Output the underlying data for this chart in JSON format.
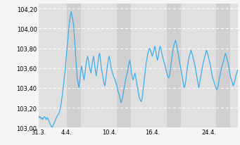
{
  "title": "",
  "ylim": [
    103.0,
    104.25
  ],
  "yticks": [
    103.0,
    103.2,
    103.4,
    103.6,
    103.8,
    104.0,
    104.2
  ],
  "ytick_labels": [
    "103,00",
    "103,20",
    "103,40",
    "103,60",
    "103,80",
    "104,00",
    "104,20"
  ],
  "xtick_labels": [
    "31.3.",
    "4.4.",
    "10.4.",
    "16.4.",
    "24.4."
  ],
  "xtick_positions_days": [
    0,
    4,
    10,
    16,
    24
  ],
  "total_days": 28,
  "line_color": "#3daee9",
  "background_color": "#f5f5f5",
  "plot_bg_color": "#ebebeb",
  "stripe_light": "#e0e0e0",
  "stripe_dark": "#d0d0d0",
  "grid_color": "#ffffff",
  "line_width": 0.9,
  "points_per_day": 8,
  "start_weekday": 1,
  "y_values": [
    103.12,
    103.1,
    103.11,
    103.09,
    103.1,
    103.08,
    103.1,
    103.11,
    103.1,
    103.08,
    103.1,
    103.09,
    103.07,
    103.05,
    103.03,
    103.01,
    103.0,
    103.02,
    103.04,
    103.06,
    103.08,
    103.1,
    103.12,
    103.13,
    103.15,
    103.18,
    103.22,
    103.28,
    103.35,
    103.42,
    103.5,
    103.58,
    103.68,
    103.78,
    103.88,
    103.98,
    104.06,
    104.12,
    104.17,
    104.13,
    104.08,
    104.02,
    103.88,
    103.75,
    103.62,
    103.5,
    103.45,
    103.4,
    103.48,
    103.55,
    103.62,
    103.58,
    103.52,
    103.48,
    103.55,
    103.62,
    103.68,
    103.72,
    103.68,
    103.62,
    103.58,
    103.55,
    103.62,
    103.68,
    103.72,
    103.65,
    103.58,
    103.52,
    103.58,
    103.65,
    103.72,
    103.75,
    103.68,
    103.6,
    103.55,
    103.5,
    103.45,
    103.42,
    103.48,
    103.55,
    103.62,
    103.68,
    103.72,
    103.68,
    103.62,
    103.58,
    103.55,
    103.52,
    103.5,
    103.48,
    103.45,
    103.42,
    103.38,
    103.35,
    103.32,
    103.28,
    103.25,
    103.28,
    103.32,
    103.38,
    103.42,
    103.48,
    103.52,
    103.55,
    103.6,
    103.65,
    103.68,
    103.62,
    103.55,
    103.5,
    103.48,
    103.52,
    103.55,
    103.5,
    103.45,
    103.4,
    103.35,
    103.3,
    103.28,
    103.26,
    103.28,
    103.35,
    103.42,
    103.5,
    103.58,
    103.65,
    103.7,
    103.75,
    103.78,
    103.8,
    103.78,
    103.75,
    103.72,
    103.75,
    103.78,
    103.82,
    103.78,
    103.72,
    103.68,
    103.72,
    103.78,
    103.82,
    103.8,
    103.75,
    103.72,
    103.68,
    103.65,
    103.62,
    103.58,
    103.55,
    103.52,
    103.5,
    103.52,
    103.58,
    103.65,
    103.72,
    103.78,
    103.82,
    103.85,
    103.88,
    103.85,
    103.8,
    103.75,
    103.7,
    103.65,
    103.6,
    103.55,
    103.5,
    103.45,
    103.4,
    103.42,
    103.48,
    103.55,
    103.62,
    103.68,
    103.72,
    103.75,
    103.78,
    103.75,
    103.72,
    103.68,
    103.65,
    103.6,
    103.55,
    103.5,
    103.45,
    103.4,
    103.45,
    103.5,
    103.55,
    103.6,
    103.65,
    103.68,
    103.72,
    103.75,
    103.78,
    103.75,
    103.72,
    103.68,
    103.65,
    103.6,
    103.55,
    103.5,
    103.48,
    103.45,
    103.42,
    103.4,
    103.38,
    103.4,
    103.45,
    103.5,
    103.55,
    103.58,
    103.62,
    103.65,
    103.68,
    103.72,
    103.75,
    103.72,
    103.68,
    103.65,
    103.6,
    103.55,
    103.5,
    103.48,
    103.45,
    103.42,
    103.45,
    103.48,
    103.52,
    103.55,
    103.58
  ]
}
